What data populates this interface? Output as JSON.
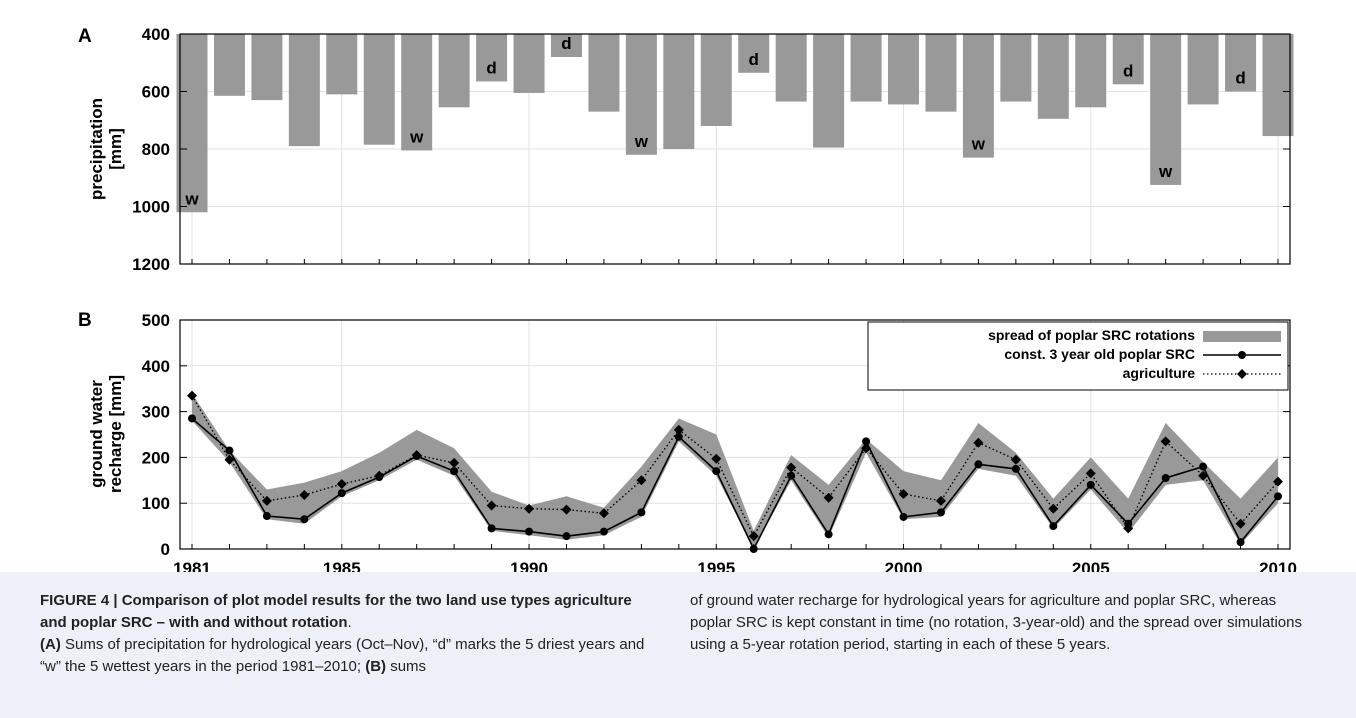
{
  "chart_data": [
    {
      "panel": "A",
      "type": "bar",
      "ylabel": [
        "precipitation",
        "[mm]"
      ],
      "ylim": [
        400,
        1200
      ],
      "y_inverted": true,
      "yticks": [
        400,
        600,
        800,
        1000,
        1200
      ],
      "xlim": [
        1981,
        2010
      ],
      "grid": true,
      "bar_color": "#999999",
      "years": [
        1981,
        1982,
        1983,
        1984,
        1985,
        1986,
        1987,
        1988,
        1989,
        1990,
        1991,
        1992,
        1993,
        1994,
        1995,
        1996,
        1997,
        1998,
        1999,
        2000,
        2001,
        2002,
        2003,
        2004,
        2005,
        2006,
        2007,
        2008,
        2009,
        2010
      ],
      "values": [
        1020,
        615,
        630,
        790,
        610,
        785,
        805,
        655,
        565,
        605,
        480,
        670,
        820,
        800,
        720,
        535,
        635,
        795,
        635,
        645,
        670,
        830,
        635,
        695,
        655,
        575,
        925,
        645,
        600,
        755
      ],
      "markers": {
        "1981": "w",
        "1987": "w",
        "1989": "d",
        "1991": "d",
        "1993": "w",
        "1996": "d",
        "2002": "w",
        "2006": "d",
        "2007": "w",
        "2009": "d"
      }
    },
    {
      "panel": "B",
      "type": "line",
      "ylabel": [
        "ground water",
        "recharge [mm]"
      ],
      "ylim": [
        0,
        500
      ],
      "yticks": [
        0,
        100,
        200,
        300,
        400,
        500
      ],
      "xlim": [
        1981,
        2010
      ],
      "xticks": [
        1981,
        1985,
        1990,
        1995,
        2000,
        2005,
        2010
      ],
      "grid": true,
      "legend_position": "top-right",
      "x": [
        1981,
        1982,
        1983,
        1984,
        1985,
        1986,
        1987,
        1988,
        1989,
        1990,
        1991,
        1992,
        1993,
        1994,
        1995,
        1996,
        1997,
        1998,
        1999,
        2000,
        2001,
        2002,
        2003,
        2004,
        2005,
        2006,
        2007,
        2008,
        2009,
        2010
      ],
      "series": [
        {
          "name": "spread of poplar SRC rotations",
          "kind": "band",
          "color": "#999999",
          "upper": [
            340,
            215,
            130,
            145,
            170,
            210,
            260,
            220,
            125,
            95,
            115,
            90,
            180,
            285,
            250,
            40,
            205,
            140,
            240,
            170,
            150,
            275,
            210,
            110,
            200,
            110,
            275,
            190,
            110,
            200
          ],
          "lower": [
            280,
            190,
            65,
            55,
            115,
            150,
            195,
            160,
            40,
            30,
            20,
            30,
            70,
            235,
            160,
            0,
            150,
            25,
            210,
            65,
            70,
            175,
            160,
            45,
            130,
            35,
            140,
            150,
            10,
            100
          ]
        },
        {
          "name": "const. 3 year old poplar SRC",
          "kind": "line",
          "style": "solid",
          "marker": "circle",
          "color": "#000000",
          "values": [
            285,
            215,
            72,
            65,
            122,
            157,
            203,
            170,
            45,
            38,
            28,
            38,
            80,
            245,
            170,
            0,
            160,
            32,
            235,
            70,
            80,
            185,
            175,
            50,
            140,
            55,
            155,
            180,
            15,
            115
          ]
        },
        {
          "name": "agriculture",
          "kind": "line",
          "style": "dotted",
          "marker": "diamond",
          "color": "#000000",
          "values": [
            335,
            195,
            105,
            118,
            142,
            160,
            205,
            188,
            95,
            88,
            86,
            78,
            150,
            260,
            197,
            28,
            178,
            112,
            220,
            120,
            105,
            232,
            195,
            88,
            165,
            45,
            235,
            160,
            55,
            147
          ]
        }
      ]
    }
  ],
  "caption": {
    "heading": "FIGURE 4 | Comparison of plot model results for the two land use types agriculture and poplar SRC – with and without rotation",
    "heading_end": ".",
    "part_a_label": "(A)",
    "part_a_text": " Sums of precipitation for hydrological years (Oct–Nov), “d” marks the 5 driest years and “w” the 5 wettest years in the period 1981–2010; ",
    "part_b_label": "(B)",
    "part_b_text_1": " sums",
    "part_b_text_2": "of ground water recharge for hydrological years for agriculture and poplar SRC, whereas poplar SRC is kept constant in time (no rotation, 3-year-old) and the spread over simulations using a 5-year rotation period, starting in each of these 5 years."
  }
}
